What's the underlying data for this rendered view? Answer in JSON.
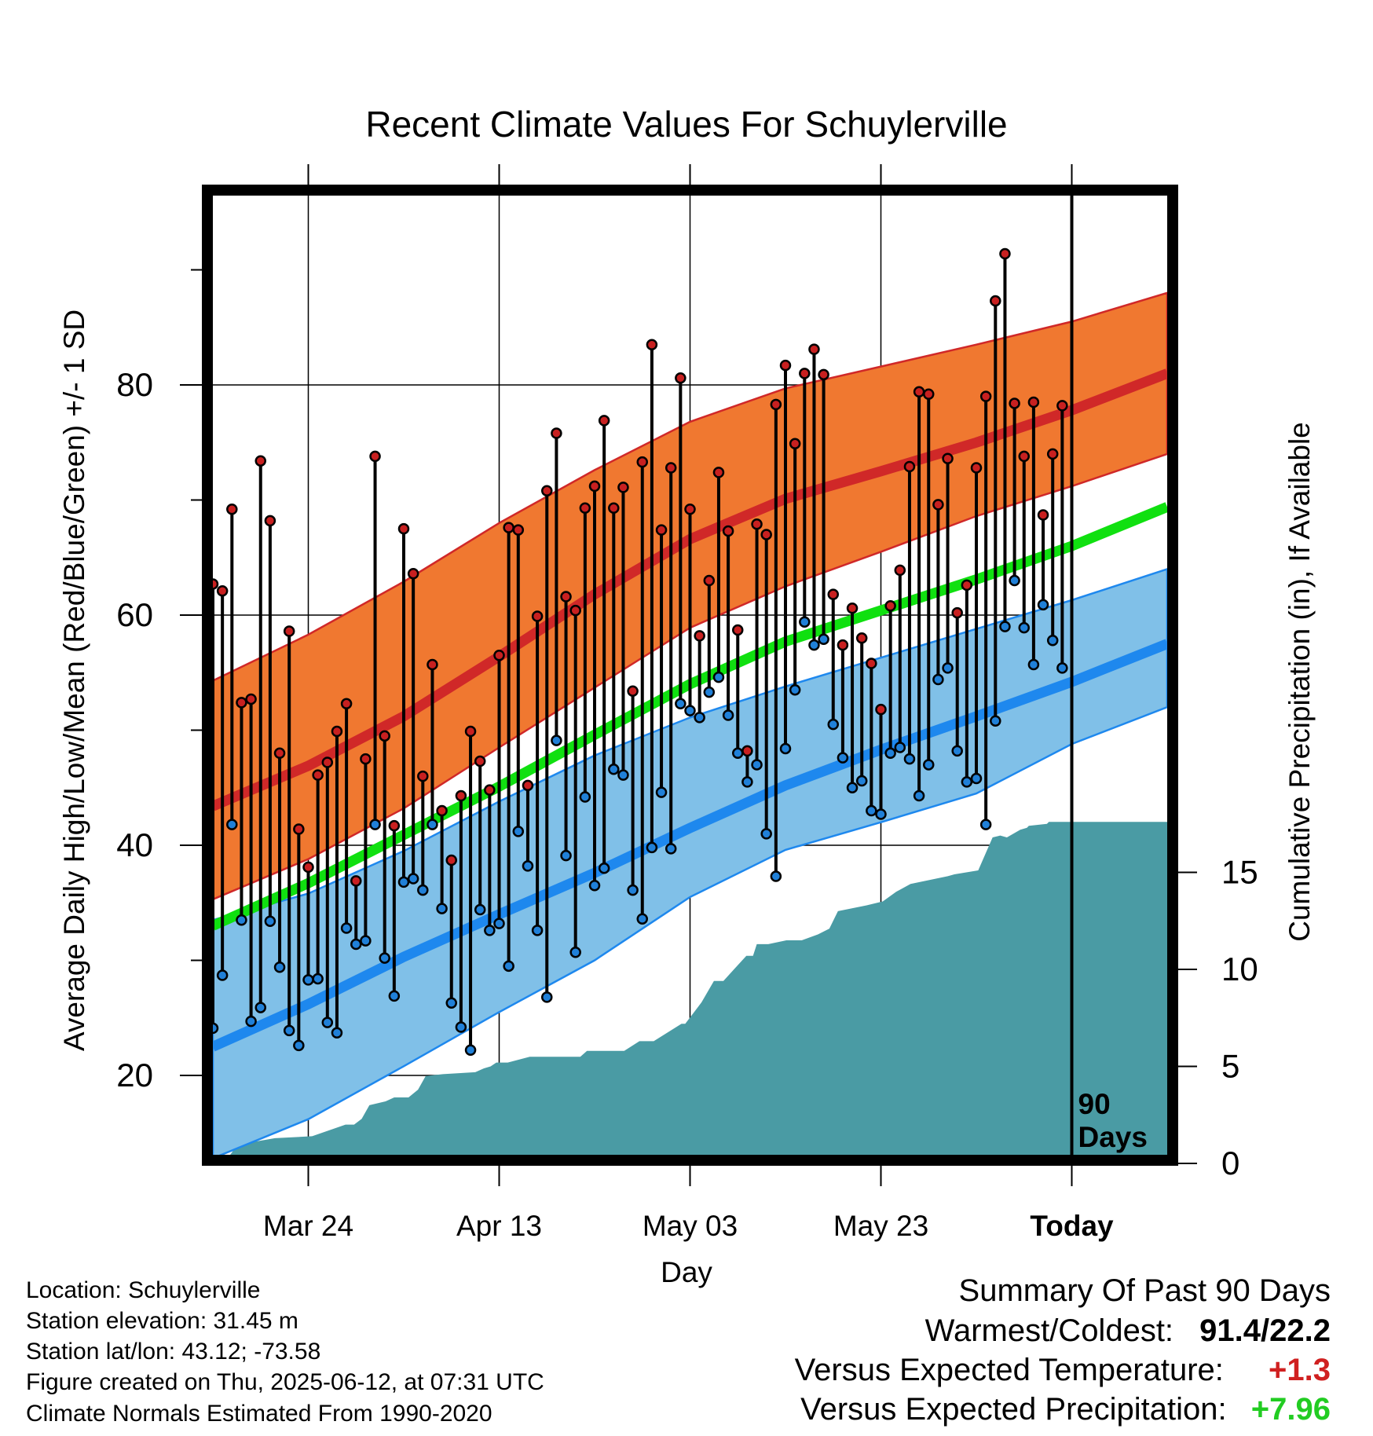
{
  "chart_data": {
    "type": "line",
    "title": "Recent Climate Values For Schuylerville",
    "xlabel": "Day",
    "ylabel_left": "Average Daily High/Low/Mean (Red/Blue/Green) +/- 1 SD",
    "ylabel_right": "Cumulative Precipitation (in), If Available",
    "x_tick_labels": [
      "Mar 24",
      "Apr 13",
      "May 03",
      "May 23",
      "Today"
    ],
    "x_tick_days": [
      10,
      30,
      50,
      70,
      90
    ],
    "left_yticks": [
      20,
      40,
      60,
      80
    ],
    "right_yticks": [
      0,
      5,
      10,
      15
    ],
    "ylim_left": [
      12.8,
      97.5
    ],
    "ylim_right": [
      0,
      40.2
    ],
    "xlim_days": [
      0,
      100
    ],
    "grid": true,
    "today_marker": {
      "day": 90,
      "label_line1": "90",
      "label_line2": "Days"
    },
    "colors": {
      "high_band": "#f07830",
      "high_mean": "#d02828",
      "low_band": "#80c0e8",
      "low_mean": "#1e88ee",
      "mean_line": "#10e010",
      "precip": "#4a9ba4",
      "high_dot": "#c82020",
      "low_dot": "#2080d8"
    },
    "normals_days": [
      0,
      10,
      20,
      30,
      40,
      50,
      60,
      70,
      80,
      90,
      100
    ],
    "normal_high": [
      43.4,
      46.9,
      51.2,
      56.4,
      61.8,
      66.6,
      70.1,
      72.5,
      75.0,
      77.8,
      81.0
    ],
    "normal_high_upper": [
      54.3,
      58.3,
      62.9,
      68.0,
      72.6,
      76.8,
      79.7,
      81.6,
      83.5,
      85.5,
      88.0
    ],
    "normal_high_lower": [
      35.3,
      38.8,
      43.2,
      48.5,
      53.7,
      58.9,
      62.5,
      65.5,
      68.6,
      71.2,
      74.0
    ],
    "normal_mean": [
      33.0,
      36.7,
      40.9,
      45.1,
      49.6,
      54.0,
      57.7,
      60.4,
      63.1,
      66.0,
      69.4
    ],
    "normal_low": [
      22.5,
      26.2,
      30.3,
      34.0,
      37.6,
      41.5,
      45.2,
      48.3,
      51.2,
      54.2,
      57.5
    ],
    "normal_low_upper": [
      33.5,
      35.8,
      39.5,
      43.8,
      47.8,
      51.1,
      53.8,
      56.3,
      58.8,
      61.3,
      64.0
    ],
    "normal_low_lower": [
      12.8,
      16.2,
      20.8,
      25.5,
      30.0,
      35.5,
      39.6,
      42.0,
      44.5,
      48.8,
      52.0
    ],
    "daily_high": [
      62.7,
      62.1,
      69.2,
      52.4,
      52.7,
      73.4,
      68.2,
      48.0,
      58.6,
      41.4,
      38.1,
      46.1,
      47.2,
      49.9,
      52.3,
      36.9,
      47.5,
      73.8,
      49.5,
      41.7,
      67.5,
      63.6,
      46.0,
      55.7,
      43.0,
      38.7,
      44.3,
      49.9,
      47.3,
      44.8,
      56.5,
      67.6,
      67.4,
      45.2,
      59.9,
      70.8,
      75.8,
      61.6,
      60.4,
      69.3,
      71.2,
      76.9,
      69.3,
      71.1,
      53.4,
      73.3,
      83.5,
      67.4,
      72.8,
      80.6,
      69.2,
      58.2,
      63.0,
      72.4,
      67.3,
      58.7,
      48.2,
      67.9,
      67.0,
      78.3,
      81.7,
      74.9,
      81.0,
      83.1,
      80.9,
      61.8,
      57.4,
      60.6,
      58.0,
      55.8,
      51.8,
      60.8,
      63.9,
      72.9,
      79.4,
      79.2,
      69.6,
      73.6,
      60.2,
      62.6,
      72.8,
      79.0,
      87.3,
      91.4,
      78.4,
      73.8,
      78.5,
      68.7,
      74.0,
      78.2
    ],
    "daily_low": [
      24.1,
      28.7,
      41.8,
      33.5,
      24.7,
      25.9,
      33.4,
      29.4,
      23.9,
      22.6,
      28.3,
      28.4,
      24.6,
      23.7,
      32.8,
      31.4,
      31.7,
      41.8,
      30.2,
      26.9,
      36.8,
      37.1,
      36.1,
      41.8,
      34.5,
      26.3,
      24.2,
      22.2,
      34.4,
      32.6,
      33.2,
      29.5,
      41.2,
      38.2,
      32.6,
      26.8,
      49.1,
      39.1,
      30.7,
      44.2,
      36.5,
      38.0,
      46.6,
      46.1,
      36.1,
      33.6,
      39.8,
      44.6,
      39.7,
      52.3,
      51.7,
      51.1,
      53.3,
      54.6,
      51.3,
      48.0,
      45.5,
      47.0,
      41.0,
      37.3,
      48.4,
      53.5,
      59.4,
      57.4,
      57.9,
      50.5,
      47.6,
      45.0,
      45.6,
      43.0,
      42.7,
      48.0,
      48.5,
      47.5,
      44.3,
      47.0,
      54.4,
      55.4,
      48.2,
      45.5,
      45.8,
      41.8,
      50.8,
      59.0,
      63.0,
      58.9,
      55.7,
      60.9,
      57.8,
      55.4
    ],
    "precip_days": [
      0,
      1.6,
      2.5,
      3.4,
      4.2,
      6.5,
      10.4,
      13.9,
      14.8,
      15.6,
      16.4,
      18.1,
      19.0,
      20.5,
      21.5,
      22.3,
      24.1,
      27.5,
      28.4,
      29.1,
      29.7,
      30.9,
      33.2,
      38.5,
      39.2,
      43.1,
      44.7,
      46.2,
      49.1,
      49.5,
      51.2,
      52.5,
      53.5,
      54.6,
      55.9,
      56.6,
      57.0,
      58.2,
      60.1,
      61.7,
      63.4,
      64.6,
      65.5,
      68.5,
      70.2,
      71.6,
      73.1,
      77.0,
      77.7,
      80.2,
      81.7,
      82.5,
      83.2,
      84.6,
      85.3,
      85.5,
      87.4,
      87.6,
      89.4,
      100
    ],
    "precip_cum": [
      0,
      0.3,
      0.9,
      1.0,
      1.1,
      1.3,
      1.4,
      2.0,
      2.0,
      2.3,
      3.0,
      3.2,
      3.4,
      3.4,
      3.8,
      4.5,
      4.6,
      4.7,
      4.9,
      5.0,
      5.2,
      5.2,
      5.5,
      5.5,
      5.8,
      5.8,
      6.3,
      6.3,
      7.2,
      7.2,
      8.3,
      9.4,
      9.4,
      10.0,
      10.7,
      10.7,
      11.3,
      11.3,
      11.5,
      11.5,
      11.8,
      12.1,
      13.0,
      13.3,
      13.5,
      14.0,
      14.4,
      14.8,
      14.9,
      15.1,
      16.8,
      16.9,
      16.8,
      17.2,
      17.3,
      17.4,
      17.5,
      17.6,
      17.6,
      17.6
    ]
  },
  "info": {
    "location": "Location: Schuylerville",
    "elevation": "Station elevation: 31.45 m",
    "latlon": "Station lat/lon: 43.12; -73.58",
    "created": "Figure created on Thu, 2025-06-12, at 07:31 UTC",
    "normals": "Climate Normals Estimated From 1990-2020"
  },
  "summary": {
    "heading": "Summary Of Past 90 Days",
    "warm_cold_label": "Warmest/Coldest:",
    "warm_cold_value": "91.4/22.2",
    "temp_label": "Versus Expected Temperature:",
    "temp_value": "+1.3",
    "temp_color": "#d02020",
    "precip_label": "Versus Expected Precipitation:",
    "precip_value": "+7.96",
    "precip_color": "#22cc22"
  }
}
